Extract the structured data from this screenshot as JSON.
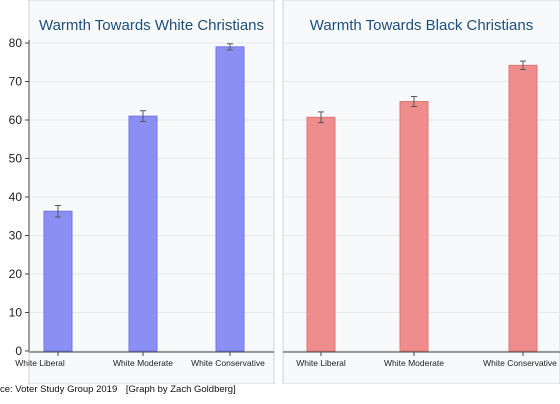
{
  "footer": {
    "source": "ce: Voter Study Group 2019",
    "credit": "[Graph by Zach Goldberg]"
  },
  "colors": {
    "panel_bg": "#f7f9fb",
    "panel_border": "#cfd4d9",
    "grid": "#e7eaee",
    "title": "#1d4f7a",
    "axis": "#444444",
    "bar_white": "#8b8ff4",
    "bar_white_edge": "#7276e3",
    "bar_black": "#ef8d8d",
    "bar_black_edge": "#df7676",
    "error_bar": "#555555"
  },
  "chart_data": [
    {
      "type": "bar",
      "title": "Warmth Towards White Christians",
      "categories": [
        "White Liberal",
        "White Moderate",
        "White Conservative"
      ],
      "values": [
        36.3,
        61.0,
        79.0
      ],
      "error": [
        1.5,
        1.4,
        0.8
      ],
      "ylim": [
        0,
        80
      ],
      "yticks": [
        0,
        10,
        20,
        30,
        40,
        50,
        60,
        70,
        80
      ],
      "color": "bar_white",
      "grid": true
    },
    {
      "type": "bar",
      "title": "Warmth Towards Black Christians",
      "categories": [
        "White Liberal",
        "White Moderate",
        "White Conservative"
      ],
      "values": [
        60.7,
        64.8,
        74.2
      ],
      "error": [
        1.4,
        1.3,
        1.1
      ],
      "ylim": [
        0,
        80
      ],
      "color": "bar_black",
      "grid": true
    }
  ]
}
